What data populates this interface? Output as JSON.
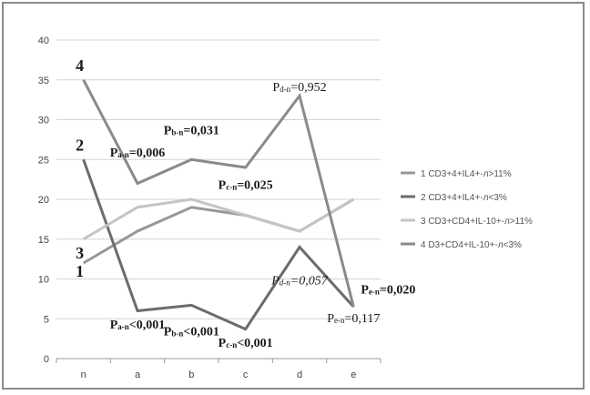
{
  "chart_data": {
    "type": "line",
    "categories": [
      "n",
      "a",
      "b",
      "c",
      "d",
      "e"
    ],
    "ylim": [
      0,
      40
    ],
    "yticks": [
      "0",
      "5",
      "10",
      "15",
      "20",
      "25",
      "30",
      "35",
      "40"
    ],
    "grid": true,
    "legend_position": "right",
    "series": [
      {
        "name": "1 CD3+4+IL4+-л>11%",
        "end_label": "1",
        "color": "#979797",
        "values": [
          12,
          16,
          19,
          18,
          16,
          20
        ]
      },
      {
        "name": "2 CD3+4+IL4+-л<3%",
        "end_label": "2",
        "color": "#6c6c6c",
        "values": [
          25,
          6,
          6.7,
          3.7,
          14,
          6.5
        ]
      },
      {
        "name": "3 CD3+CD4+IL-10+-л>11%",
        "end_label": "3",
        "color": "#c4c4c4",
        "values": [
          15,
          19,
          20,
          18,
          16,
          20
        ]
      },
      {
        "name": "4 D3+CD4+IL-10+-л<3%",
        "end_label": "4",
        "color": "#8a8a8a",
        "values": [
          35,
          22,
          25,
          24,
          33,
          6.5
        ]
      }
    ],
    "annotations": [
      {
        "text": "Pₐₙ=0,006",
        "main": "P",
        "sub": "a-n",
        "rest": "=0,006",
        "x": "a",
        "y": 25.4,
        "bold": true,
        "italic": false,
        "anchor": "middle"
      },
      {
        "text": "Pᵇₙ=0,031",
        "main": "P",
        "sub": "b-n",
        "rest": "=0,031",
        "x": "b",
        "y": 28.2,
        "bold": true,
        "italic": false,
        "anchor": "middle"
      },
      {
        "text": "Pc-n=0,025",
        "main": "P",
        "sub": "c-n",
        "rest": "=0,025",
        "x": "c",
        "y": 21.3,
        "bold": true,
        "italic": false,
        "anchor": "middle"
      },
      {
        "text": "Pd-n=0,952",
        "main": "P",
        "sub": "d-n",
        "rest": "=0,952",
        "x": "d",
        "y": 33.6,
        "bold": false,
        "italic": false,
        "anchor": "middle"
      },
      {
        "text": "Pd-n=0,057",
        "main": "P",
        "sub": "d-n",
        "rest": "=0,057",
        "x": "d",
        "y": 9.3,
        "bold": false,
        "italic": true,
        "anchor": "middle"
      },
      {
        "text": "Pe-n=0,020",
        "main": "P",
        "sub": "e-n",
        "rest": "=0,020",
        "x": "e",
        "y": 8.2,
        "bold": true,
        "italic": false,
        "anchor": "start"
      },
      {
        "text": "Pe-n=0,117",
        "main": "P",
        "sub": "e-n",
        "rest": "=0,117",
        "x": "e",
        "y": 4.6,
        "bold": false,
        "italic": false,
        "anchor": "middle"
      },
      {
        "text": "Pa-n<0,001",
        "main": "P",
        "sub": "a-n",
        "rest": "<0,001",
        "x": "a",
        "y": 3.8,
        "bold": true,
        "italic": false,
        "anchor": "middle"
      },
      {
        "text": "Pb-n<0,001",
        "main": "P",
        "sub": "b-n",
        "rest": "<0,001",
        "x": "b",
        "y": 2.9,
        "bold": true,
        "italic": false,
        "anchor": "middle"
      },
      {
        "text": "Pc-n<0,001",
        "main": "P",
        "sub": "c-n",
        "rest": "<0,001",
        "x": "c",
        "y": 1.5,
        "bold": true,
        "italic": false,
        "anchor": "middle"
      }
    ]
  }
}
